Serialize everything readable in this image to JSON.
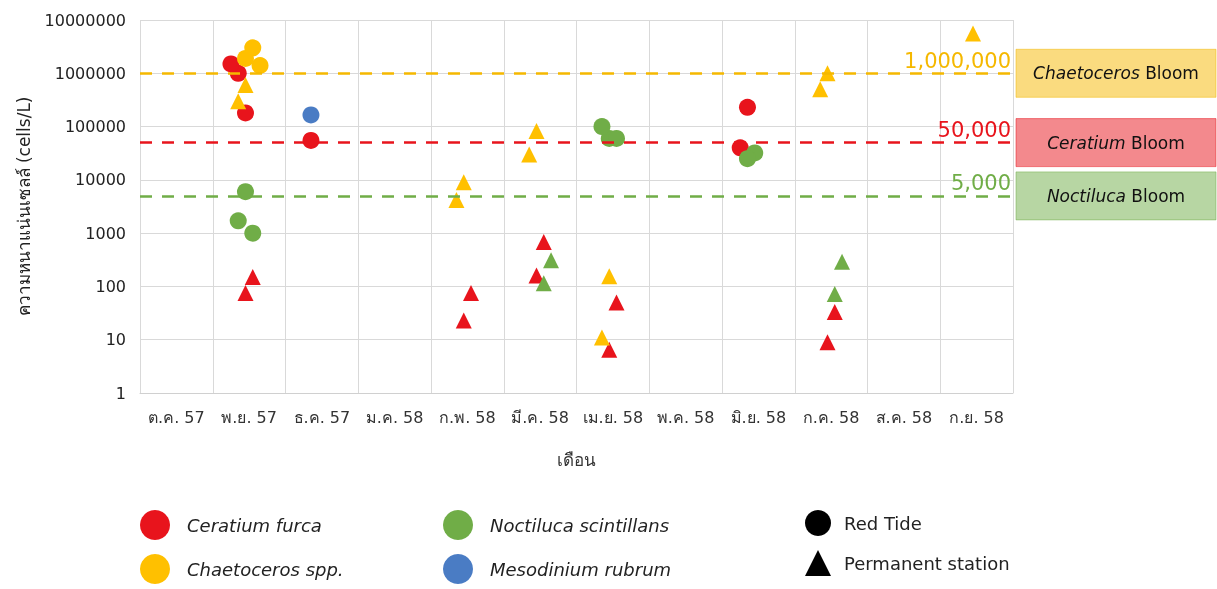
{
  "chart_data": {
    "type": "scatter",
    "xlabel": "เดือน",
    "ylabel": "ความหนาแน่นเซลล์ (cells/L)",
    "log": "y",
    "grid": "xy",
    "legend": "bottom",
    "categories": [
      "ต.ค. 57",
      "พ.ย. 57",
      "ธ.ค. 57",
      "ม.ค. 58",
      "ก.พ. 58",
      "มี.ค. 58",
      "เม.ย. 58",
      "พ.ค. 58",
      "มิ.ย. 58",
      "ก.ค. 58",
      "ส.ค. 58",
      "ก.ย. 58"
    ],
    "ylim": [
      1,
      10000000
    ],
    "yticks": [
      1,
      10,
      100,
      1000,
      10000,
      100000,
      1000000,
      10000000
    ],
    "series": [
      {
        "name": "Ceratium furca",
        "color": "#e8141c",
        "marker": "circle",
        "x": [
          "พ.ย. 57",
          "พ.ย. 57",
          "พ.ย. 57",
          "ธ.ค. 57",
          "มิ.ย. 58",
          "มิ.ย. 58"
        ],
        "values": [
          1000000,
          1500000,
          180000,
          55000,
          230000,
          40000
        ]
      },
      {
        "color": "#e8141c",
        "marker": "triangle",
        "x": [
          "พ.ย. 57",
          "พ.ย. 57",
          "ก.พ. 58",
          "ก.พ. 58",
          "มี.ค. 58",
          "มี.ค. 58",
          "เม.ย. 58",
          "เม.ย. 58",
          "ก.ค. 58",
          "ก.ค. 58"
        ],
        "values": [
          150,
          75,
          75,
          23,
          680,
          160,
          50,
          6.5,
          33,
          9
        ]
      },
      {
        "name": "Chaetoceros spp.",
        "color": "#ffc000",
        "marker": "circle",
        "x": [
          "พ.ย. 57",
          "พ.ย. 57",
          "พ.ย. 57"
        ],
        "values": [
          3000000,
          1900000,
          1400000
        ]
      },
      {
        "color": "#ffc000",
        "marker": "triangle",
        "x": [
          "พ.ย. 57",
          "พ.ย. 57",
          "ก.พ. 58",
          "ก.พ. 58",
          "มี.ค. 58",
          "มี.ค. 58",
          "เม.ย. 58",
          "เม.ย. 58",
          "ก.ค. 58",
          "ก.ค. 58",
          "ก.ย. 58"
        ],
        "values": [
          600000,
          300000,
          9000,
          4200,
          83000,
          30000,
          155,
          11,
          1000000,
          500000,
          5600000
        ]
      },
      {
        "name": "Noctiluca scintillans",
        "color": "#70ad47",
        "marker": "circle",
        "x": [
          "พ.ย. 57",
          "พ.ย. 57",
          "พ.ย. 57",
          "เม.ย. 58",
          "เม.ย. 58",
          "เม.ย. 58",
          "มิ.ย. 58",
          "มิ.ย. 58"
        ],
        "values": [
          6000,
          1700,
          1000,
          60000,
          100000,
          60000,
          32000,
          25000
        ]
      },
      {
        "color": "#70ad47",
        "marker": "triangle",
        "x": [
          "มี.ค. 58",
          "มี.ค. 58",
          "ก.ค. 58",
          "ก.ค. 58"
        ],
        "values": [
          310,
          115,
          290,
          72
        ]
      },
      {
        "name": "Mesodinium rubrum",
        "color": "#4a7cc4",
        "marker": "circle",
        "x": [
          "ธ.ค. 57"
        ],
        "values": [
          165000
        ]
      },
      {
        "name": "Red Tide",
        "color": "#000000",
        "marker": "circle",
        "values": [
          null,
          null,
          null,
          null,
          null,
          null,
          null,
          null,
          null,
          null,
          null,
          null
        ]
      },
      {
        "name": "Permanent station",
        "color": "#000000",
        "marker": "triangle",
        "values": [
          null,
          null,
          null,
          null,
          null,
          null,
          null,
          null,
          null,
          null,
          null,
          null
        ]
      }
    ],
    "ref_lines": [
      {
        "axis": "y",
        "value": 1000000,
        "label": "1,000,000",
        "color": "#f5b800",
        "line_style": "dashed"
      },
      {
        "axis": "y",
        "value": 50000,
        "label": "50,000",
        "color": "#e8141c",
        "line_style": "dashed"
      },
      {
        "axis": "y",
        "value": 5000,
        "label": "5,000",
        "color": "#70ad47",
        "line_style": "dashed"
      }
    ],
    "annotations": [
      "Chaetoceros Bloom",
      "Ceratium Bloom",
      "Noctiluca Bloom"
    ]
  }
}
